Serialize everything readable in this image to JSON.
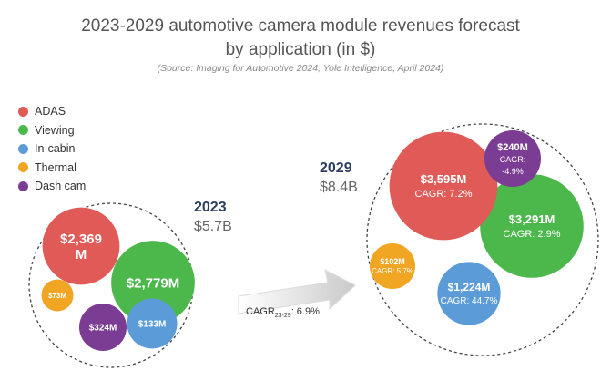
{
  "title_line1": "2023-2029 automotive camera module revenues forecast",
  "title_line2": "by application (in $)",
  "source": "(Source: Imaging for Automotive 2024, Yole Intelligence, April 2024)",
  "colors": {
    "ADAS": "#e05a58",
    "Viewing": "#4cb84c",
    "In-cabin": "#5b9bd8",
    "Thermal": "#f0a623",
    "Dash cam": "#7b3d93"
  },
  "legend": [
    "ADAS",
    "Viewing",
    "In-cabin",
    "Thermal",
    "Dash cam"
  ],
  "arrow_label": {
    "prefix": "CAGR",
    "sub": "23-29",
    "suffix": ": 6.9%"
  },
  "chart_data": {
    "type": "bubble",
    "series": [
      "ADAS",
      "Viewing",
      "In-cabin",
      "Thermal",
      "Dash cam"
    ],
    "groups": [
      {
        "year": "2023",
        "total": "$5.7B",
        "values_musd": {
          "ADAS": 2369,
          "Viewing": 2779,
          "In-cabin": 133,
          "Thermal": 73,
          "Dash cam": 324
        },
        "labels": {
          "ADAS": [
            "$2,369",
            "M"
          ],
          "Viewing": [
            "$2,779M"
          ],
          "In-cabin": [
            "$133M"
          ],
          "Thermal": [
            "$73M"
          ],
          "Dash cam": [
            "$324M"
          ]
        }
      },
      {
        "year": "2029",
        "total": "$8.4B",
        "values_musd": {
          "ADAS": 3595,
          "Viewing": 3291,
          "In-cabin": 1224,
          "Thermal": 102,
          "Dash cam": 240
        },
        "labels": {
          "ADAS": [
            "$3,595M",
            "CAGR: 7.2%"
          ],
          "Viewing": [
            "$3,291M",
            "CAGR: 2.9%"
          ],
          "In-cabin": [
            "$1,224M",
            "CAGR: 44.7%"
          ],
          "Thermal": [
            "$102M",
            "CAGR: 5.7%"
          ],
          "Dash cam": [
            "$240M",
            "CAGR:",
            "-4.9%"
          ]
        }
      }
    ],
    "overall_cagr_2023_2029": "6.9%"
  }
}
